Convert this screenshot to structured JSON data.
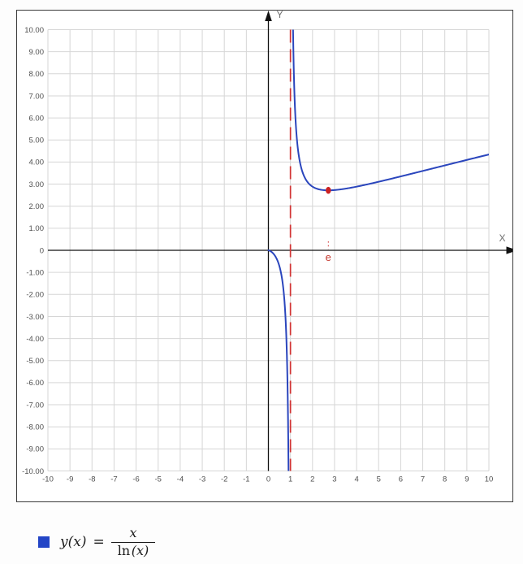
{
  "chart_data": {
    "type": "line",
    "title": "",
    "xlabel": "X",
    "ylabel": "Y",
    "xlim": [
      -10,
      10
    ],
    "ylim": [
      -10,
      10
    ],
    "x_tick_step": 1,
    "y_tick_step": 1,
    "grid": true,
    "x_tick_labels": [
      "-10",
      "-9",
      "-8",
      "-7",
      "-6",
      "-5",
      "-4",
      "-3",
      "-2",
      "-1",
      "0",
      "1",
      "2",
      "3",
      "4",
      "5",
      "6",
      "7",
      "8",
      "9",
      "10"
    ],
    "y_tick_labels": [
      "10.00",
      "9.00",
      "8.00",
      "7.00",
      "6.00",
      "5.00",
      "4.00",
      "3.00",
      "2.00",
      "1.00",
      "0",
      "-1.00",
      "-2.00",
      "-3.00",
      "-4.00",
      "-5.00",
      "-6.00",
      "-7.00",
      "-8.00",
      "-9.00",
      "-10.00"
    ],
    "series": [
      {
        "name": "y(x) = x / ln(x)",
        "expression": "x/ln(x)",
        "color": "#2b46bd",
        "branches": [
          [
            0.0008,
            0.9995
          ],
          [
            1.0008,
            10
          ]
        ],
        "key_points": [
          {
            "x": 2.71828,
            "y": 2.71828,
            "note": "minimum at (e, e)"
          },
          {
            "x": 10,
            "y": 4.3429,
            "note": "value at right edge"
          }
        ]
      }
    ],
    "asymptote": {
      "x": 1,
      "color": "#d23434",
      "style": "dashed"
    },
    "marked_point": {
      "x": 2.71828,
      "y": 2.71828,
      "color": "#cc2222",
      "axis_label": "e",
      "label_color": "#c5392f"
    },
    "legend_position": "bottom-left",
    "colors": {
      "grid": "#d6d6d6",
      "axis": "#111111",
      "tick_text": "#4f4f4f",
      "axis_letter": "#6e6e6e"
    }
  },
  "legend": {
    "swatch_color": "#2345c6",
    "lhs": "y(x)",
    "equals": "=",
    "numerator": "x",
    "denominator_fn": "ln",
    "denominator_arg": "(x)"
  }
}
